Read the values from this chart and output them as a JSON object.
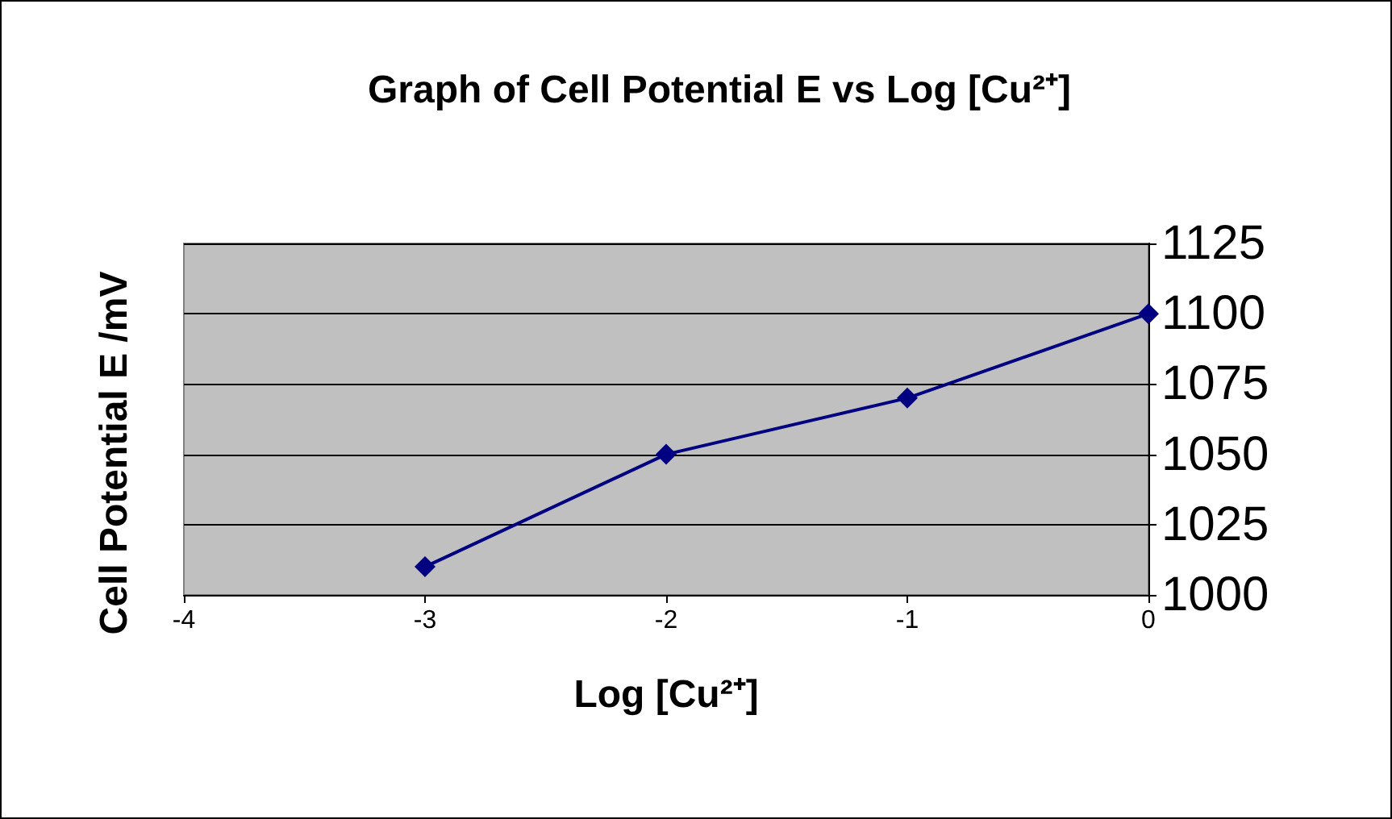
{
  "chart_data": {
    "type": "line",
    "title": "Graph of Cell Potential E vs Log [Cu²⁺]",
    "xlabel": "Log [Cu²⁺]",
    "ylabel": "Cell Potential E /mV",
    "x": [
      -3,
      -2,
      -1,
      0
    ],
    "series": [
      {
        "color": "#000080",
        "values": [
          1010,
          1050,
          1070,
          1100
        ]
      }
    ],
    "xlim": [
      -4,
      0
    ],
    "xticks": [
      -4,
      -3,
      -2,
      -1,
      0
    ],
    "ylim": [
      1000,
      1125
    ],
    "yticks": [
      1000,
      1025,
      1050,
      1075,
      1100,
      1125
    ],
    "grid": "y",
    "marker": "diamond",
    "line_style": "solid"
  }
}
